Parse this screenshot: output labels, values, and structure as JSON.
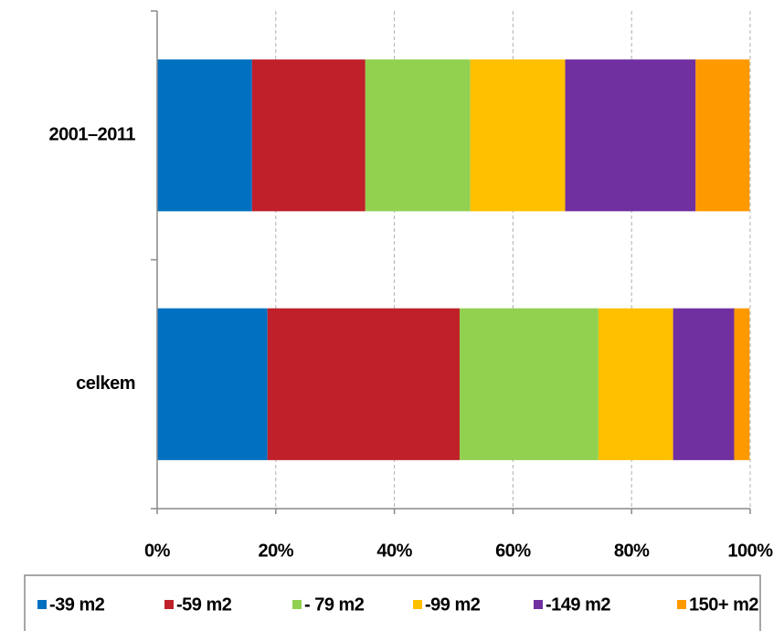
{
  "chart_data": {
    "type": "stacked_barh",
    "categories": [
      "2001–2011",
      "celkem"
    ],
    "series": [
      {
        "name": "-39 m2",
        "color": "#0070c0",
        "values": [
          16.0,
          18.6
        ]
      },
      {
        "name": "-59 m2",
        "color": "#c0202a",
        "values": [
          19.1,
          32.4
        ]
      },
      {
        "name": "- 79 m2",
        "color": "#92d050",
        "values": [
          17.7,
          23.4
        ]
      },
      {
        "name": "-99 m2",
        "color": "#ffc000",
        "values": [
          16.0,
          12.6
        ]
      },
      {
        "name": "-149 m2",
        "color": "#7030a0",
        "values": [
          22.0,
          10.3
        ]
      },
      {
        "name": "150+ m2",
        "color": "#ff9900",
        "values": [
          9.1,
          2.6
        ]
      }
    ],
    "xlim": [
      0,
      100
    ],
    "xticks": [
      {
        "value": 0,
        "label": "0%"
      },
      {
        "value": 20,
        "label": "20%"
      },
      {
        "value": 40,
        "label": "40%"
      },
      {
        "value": 60,
        "label": "60%"
      },
      {
        "value": 80,
        "label": "80%"
      },
      {
        "value": 100,
        "label": "100%"
      }
    ],
    "grid": true,
    "legend": "bottom"
  }
}
